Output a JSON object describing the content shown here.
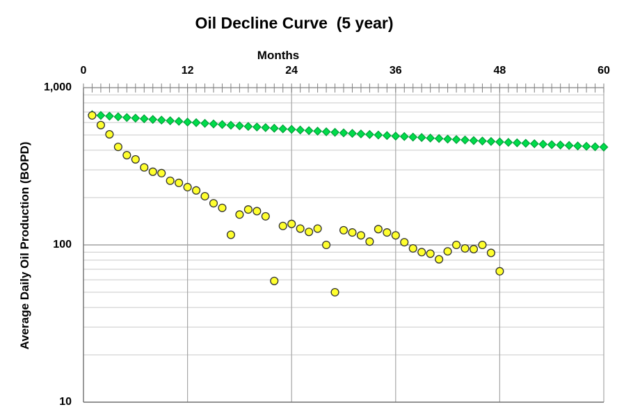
{
  "chart_data": {
    "type": "scatter",
    "title": "Oil Decline Curve  (5 year)",
    "xlabel": "Months",
    "ylabel": "Average Daily Oil Production (BOPD)",
    "x_axis": {
      "min": 0,
      "max": 60,
      "position": "top",
      "major_tick_labels": [
        "0",
        "12",
        "24",
        "36",
        "48",
        "60"
      ],
      "major_tick_values": [
        0,
        12,
        24,
        36,
        48,
        60
      ],
      "minor_tick_every_months": 1
    },
    "y_axis": {
      "scale": "log",
      "min": 10,
      "max": 1000,
      "tick_labels": [
        "1,000",
        "100",
        "10"
      ],
      "tick_values": [
        1000,
        100,
        10
      ],
      "minor_gridline_values": [
        900,
        800,
        700,
        600,
        500,
        400,
        300,
        200,
        90,
        80,
        70,
        60,
        50,
        40,
        30,
        20
      ],
      "major_gridline_values": [
        100
      ]
    },
    "grid": {
      "vertical_gridline_months": [
        12,
        24,
        36,
        48,
        60
      ],
      "grid_on": true
    },
    "legend": "none",
    "series": [
      {
        "name": "green-diamond-decline-curve",
        "marker": "diamond",
        "fill_color": "#00dc4b",
        "edge_color": "#00a038",
        "x": [
          1,
          2,
          3,
          4,
          5,
          6,
          7,
          8,
          9,
          10,
          11,
          12,
          13,
          14,
          15,
          16,
          17,
          18,
          19,
          20,
          21,
          22,
          23,
          24,
          25,
          26,
          27,
          28,
          29,
          30,
          31,
          32,
          33,
          34,
          35,
          36,
          37,
          38,
          39,
          40,
          41,
          42,
          43,
          44,
          45,
          46,
          47,
          48,
          49,
          50,
          51,
          52,
          53,
          54,
          55,
          56,
          57,
          58,
          59,
          60
        ],
        "y": [
          673,
          666,
          659,
          653,
          646,
          640,
          634,
          628,
          622,
          616,
          611,
          604,
          599,
          593,
          588,
          583,
          577,
          572,
          567,
          562,
          557,
          552,
          547,
          543,
          538,
          533,
          529,
          524,
          520,
          516,
          512,
          508,
          504,
          500,
          496,
          492,
          489,
          485,
          482,
          478,
          475,
          471,
          468,
          465,
          461,
          458,
          455,
          452,
          449,
          446,
          443,
          440,
          437,
          434,
          432,
          429,
          426,
          424,
          421,
          419
        ]
      },
      {
        "name": "yellow-circle-monthly-production",
        "marker": "circle",
        "fill_color": "#ffff2e",
        "edge_color": "#303030",
        "x": [
          1,
          2,
          3,
          4,
          5,
          6,
          7,
          8,
          9,
          10,
          11,
          12,
          13,
          14,
          15,
          16,
          17,
          18,
          19,
          20,
          21,
          22,
          23,
          24,
          25,
          26,
          27,
          28,
          29,
          30,
          31,
          32,
          33,
          34,
          35,
          36,
          37,
          38,
          39,
          40,
          41,
          42,
          43,
          44,
          45,
          46,
          47,
          48
        ],
        "y": [
          666,
          578,
          505,
          420,
          372,
          350,
          311,
          292,
          286,
          256,
          248,
          233,
          222,
          204,
          184,
          172,
          116,
          156,
          168,
          164,
          152,
          59,
          132,
          136,
          127,
          121,
          127,
          100,
          50,
          124,
          120,
          115,
          105,
          126,
          120,
          115,
          104,
          95,
          90,
          88,
          81,
          91,
          100,
          95,
          94,
          100,
          89,
          68
        ]
      }
    ],
    "style_colors": {
      "minor_gridline": "#c9c9c9",
      "major_gridline": "#8f8f8f",
      "vertical_gridline": "#a6a6a6",
      "top_axis": "#7f7f7f",
      "tick_mark": "#7f7f7f",
      "border_axis": "#6e6e6e",
      "background": "#ffffff"
    }
  }
}
